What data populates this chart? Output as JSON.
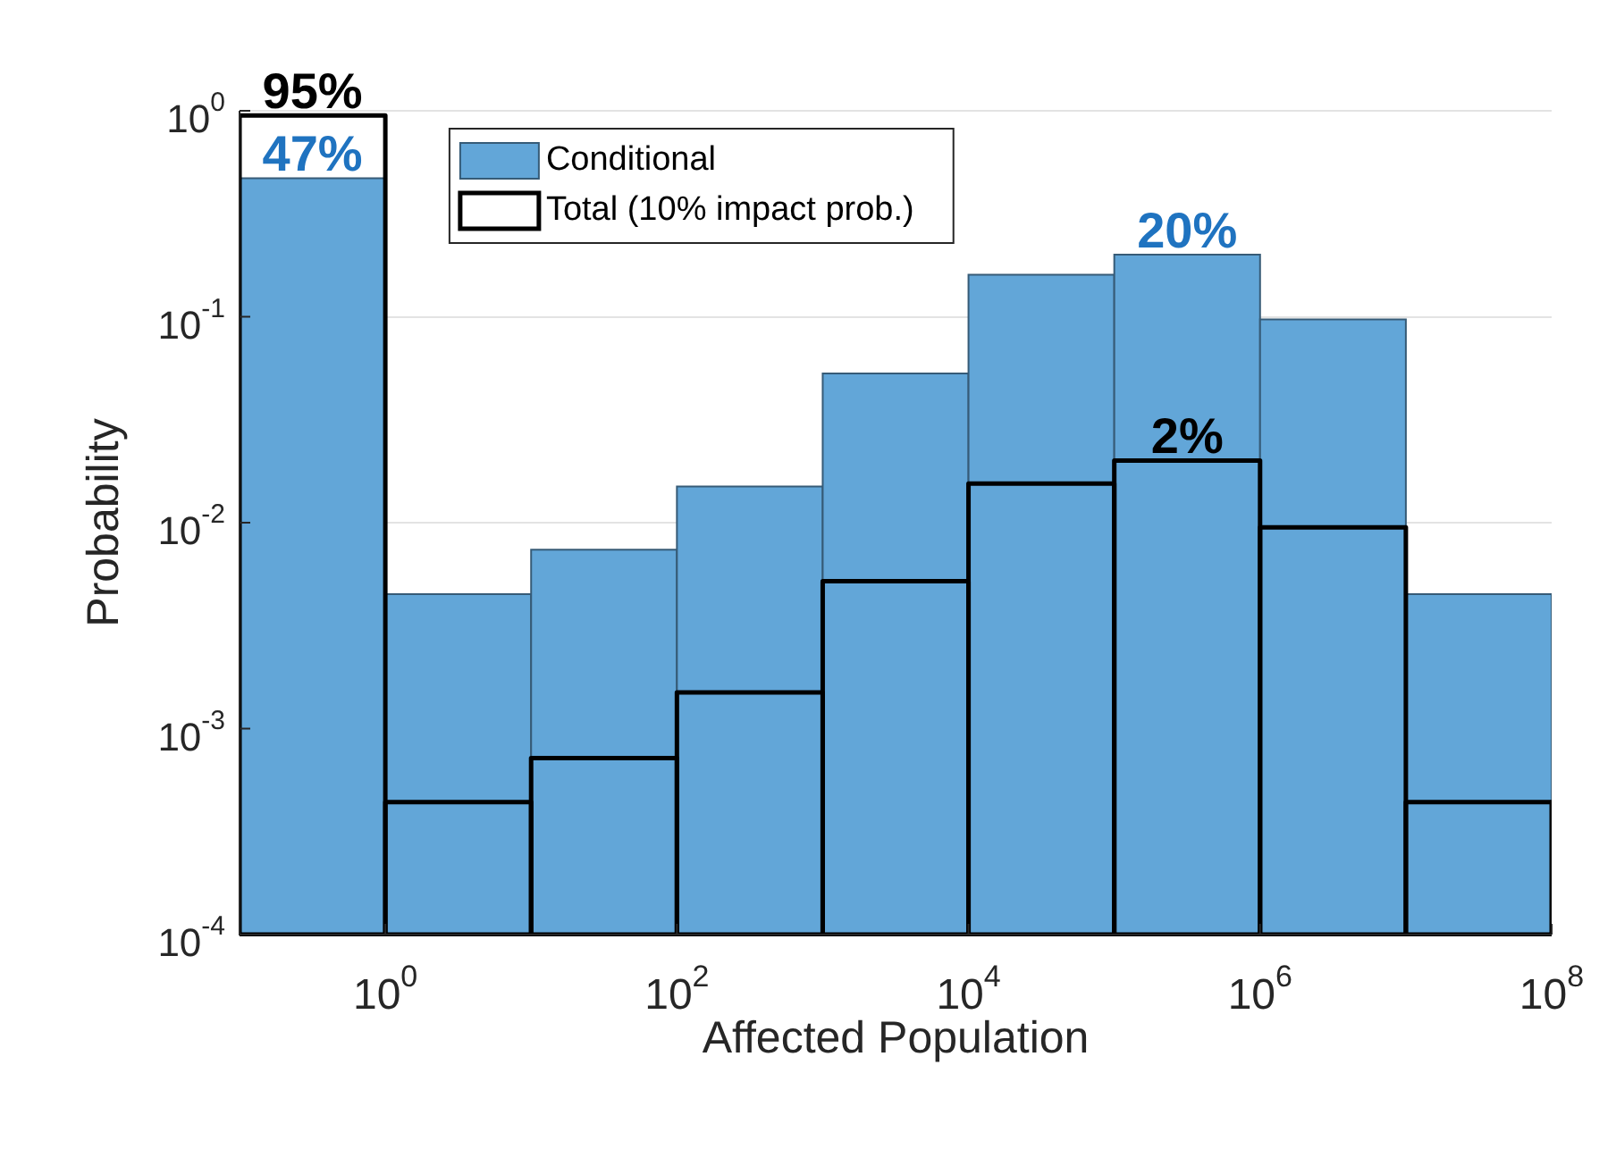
{
  "chart_data": {
    "type": "histogram",
    "xlabel": "Affected Population",
    "ylabel": "Probability",
    "bins": [
      0.1,
      1,
      10,
      100,
      1000,
      10000,
      100000,
      1000000,
      10000000,
      100000000
    ],
    "series": [
      {
        "name": "Conditional",
        "color": "#62a6d8",
        "values": [
          0.47,
          0.0045,
          0.0074,
          0.015,
          0.053,
          0.16,
          0.2,
          0.097,
          0.0045
        ],
        "value_labels": [
          "47%",
          null,
          null,
          null,
          null,
          null,
          "20%",
          null,
          null
        ]
      },
      {
        "name": "Total (10% impact prob.)",
        "type": "histogram",
        "color": "#000000",
        "values": [
          0.95,
          0.00044,
          0.00072,
          0.0015,
          0.0052,
          0.0155,
          0.02,
          0.0095,
          0.00044
        ],
        "value_labels": [
          "95%",
          null,
          null,
          null,
          null,
          null,
          "2%",
          null,
          null
        ]
      }
    ],
    "log": "xy",
    "xlim": [
      0.1,
      100000000
    ],
    "ylim": [
      0.0001,
      1
    ],
    "xticks": [
      {
        "value": 1,
        "label": "10$^{0}$"
      },
      {
        "value": 100,
        "label": "10$^{2}$"
      },
      {
        "value": 10000,
        "label": "10$^{4}$"
      },
      {
        "value": 1000000,
        "label": "10$^{6}$"
      },
      {
        "value": 100000000,
        "label": "10$^{8}$"
      }
    ],
    "yticks": [
      {
        "value": 0.0001,
        "label": "10$^{-4}$"
      },
      {
        "value": 0.001,
        "label": "10$^{-3}$"
      },
      {
        "value": 0.01,
        "label": "10$^{-2}$"
      },
      {
        "value": 0.1,
        "label": "10$^{-1}$"
      },
      {
        "value": 1,
        "label": "10$^{0}$"
      }
    ],
    "grid": "y",
    "legend": "top"
  }
}
